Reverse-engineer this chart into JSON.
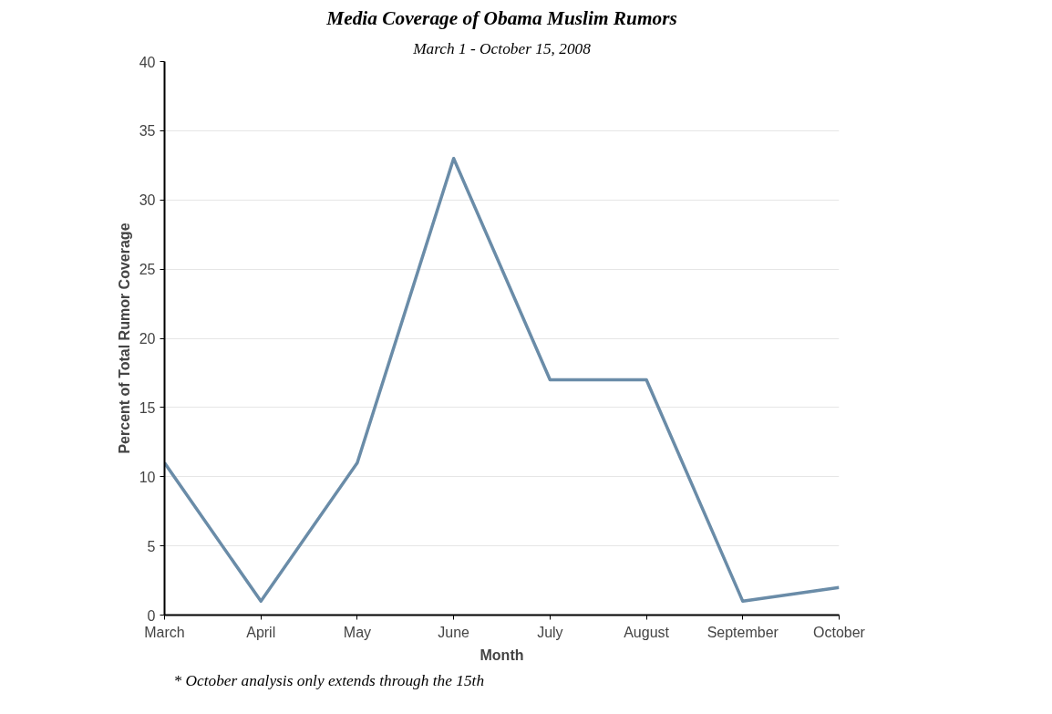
{
  "chart_data": {
    "type": "line",
    "title": "Media Coverage of Obama Muslim Rumors",
    "subtitle": "March 1 - October 15, 2008",
    "xlabel": "Month",
    "ylabel": "Percent of Total Rumor Coverage",
    "categories": [
      "March",
      "April",
      "May",
      "June",
      "July",
      "August",
      "September",
      "October"
    ],
    "series": [
      {
        "color": "#6a8ca8",
        "values": [
          11,
          1,
          11,
          33,
          17,
          17,
          1,
          2
        ]
      }
    ],
    "ylim": [
      0,
      40
    ],
    "yticks": [
      0,
      5,
      10,
      15,
      20,
      25,
      30,
      35,
      40
    ],
    "grid": "y",
    "marker": "none",
    "line_style": "solid",
    "annotations": [
      "* October analysis only extends through the 15th"
    ]
  }
}
